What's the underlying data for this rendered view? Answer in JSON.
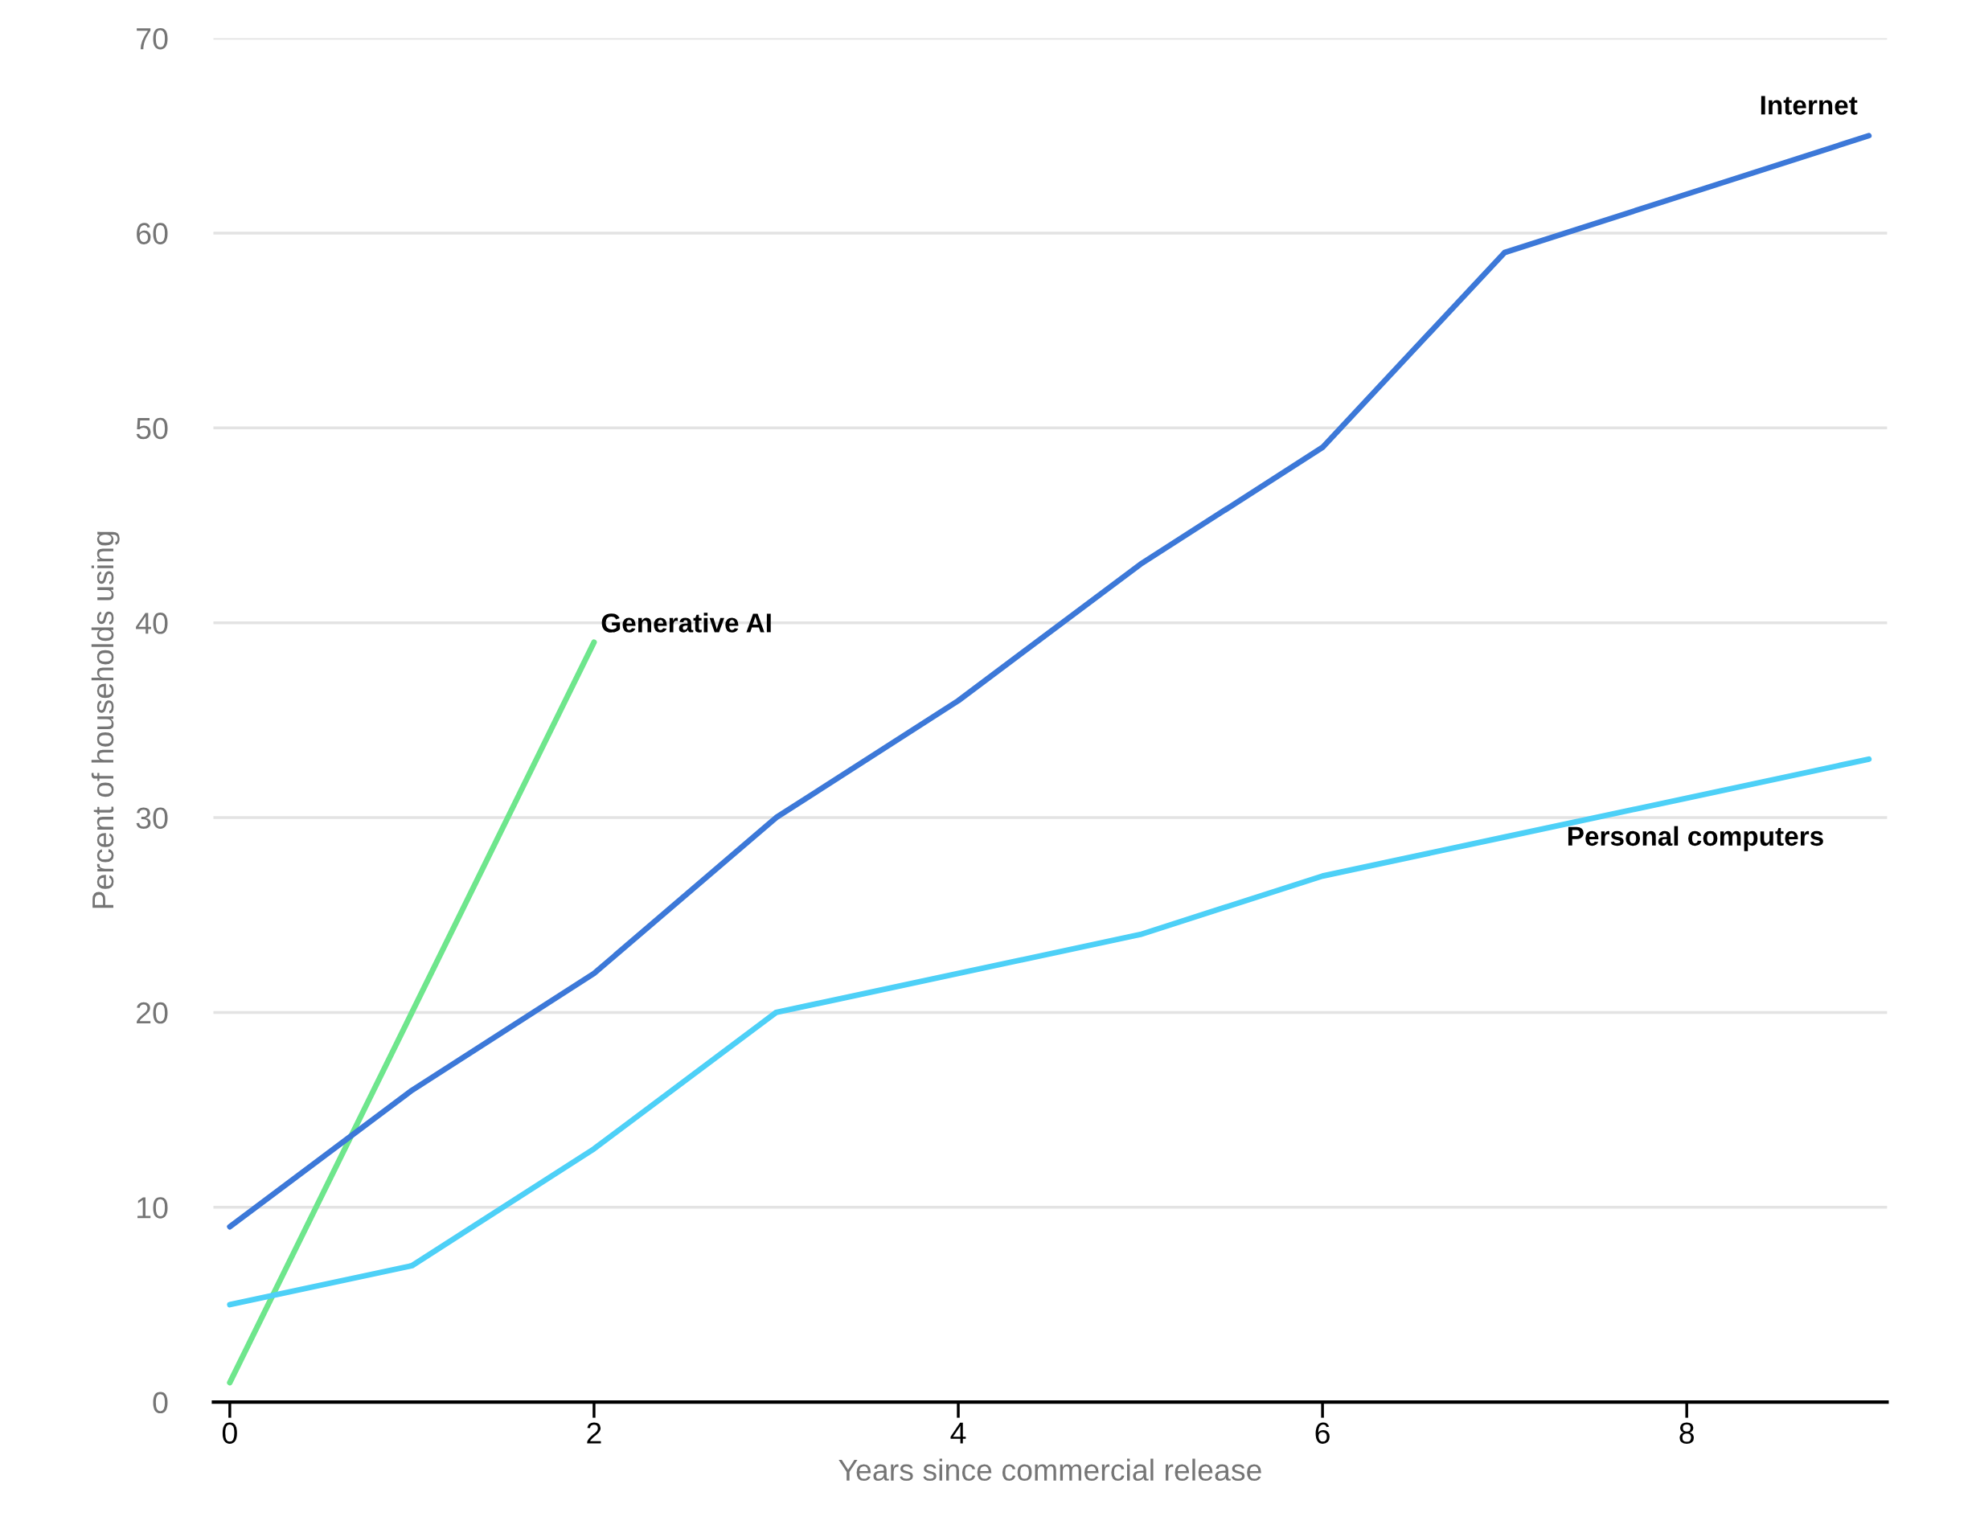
{
  "chart_data": {
    "type": "line",
    "xlabel": "Years since commercial release",
    "ylabel": "Percent of households using",
    "xlim": [
      -0.09,
      9.1
    ],
    "ylim": [
      0,
      70
    ],
    "xticks": [
      0,
      2,
      4,
      6,
      8
    ],
    "yticks": [
      0,
      10,
      20,
      30,
      40,
      50,
      60,
      70
    ],
    "grid": "y",
    "legend": false,
    "marker": "none",
    "line_style": "solid",
    "series": [
      {
        "name": "Generative AI",
        "color": "#6ee68c",
        "x": [
          0,
          1,
          2
        ],
        "values": [
          1,
          20,
          39
        ]
      },
      {
        "name": "Internet",
        "color": "#3c78d8",
        "x": [
          0,
          1,
          2,
          3,
          4,
          5,
          6,
          7,
          8,
          9
        ],
        "values": [
          9,
          16,
          22,
          30,
          36,
          43,
          49,
          59,
          62,
          65
        ]
      },
      {
        "name": "Personal computers",
        "color": "#4dd0f7",
        "x": [
          0,
          1,
          2,
          3,
          4,
          5,
          6,
          7,
          8,
          9
        ],
        "values": [
          5,
          7,
          13,
          20,
          22,
          24,
          27,
          29,
          31,
          33
        ]
      }
    ]
  }
}
